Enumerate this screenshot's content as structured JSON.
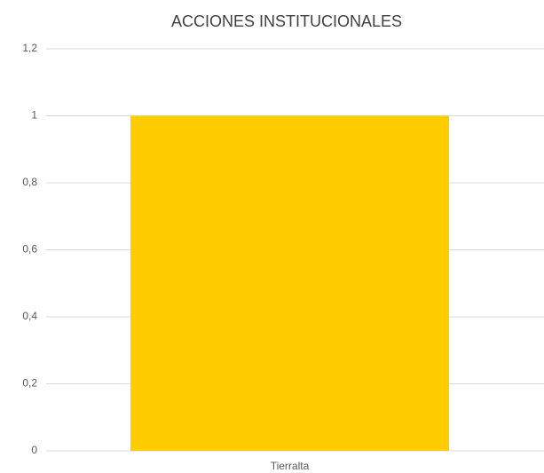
{
  "chart_data": {
    "type": "bar",
    "title": "ACCIONES INSTITUCIONALES",
    "categories": [
      "Tierralta"
    ],
    "values": [
      1
    ],
    "color": "#ffcc00",
    "ylim": [
      0,
      1.2
    ],
    "yticks": [
      0,
      {
        "value": 0.2,
        "label": "0,2"
      },
      {
        "value": 0.4,
        "label": "0,4"
      },
      {
        "value": 0.6,
        "label": "0,6"
      },
      {
        "value": 0.8,
        "label": "0,8"
      },
      1,
      {
        "value": 1.2,
        "label": "1,2"
      }
    ],
    "grid": true
  }
}
